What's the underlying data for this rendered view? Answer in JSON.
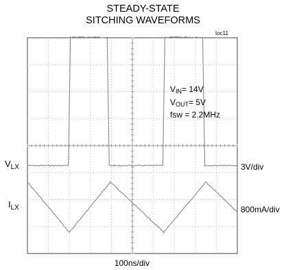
{
  "chart_data": {
    "type": "line",
    "title_line1": "STEADY-STATE",
    "title_line2": "SITCHING WAVEFORMS",
    "figure_tag": "toc11",
    "xlabel": "100ns/div",
    "grid": {
      "x_divisions": 10,
      "y_divisions": 8,
      "on": true
    },
    "annotations": {
      "vin_sym": "V",
      "vin_sub": "IN",
      "vin_rest": "= 14V",
      "vout_sym": "V",
      "vout_sub": "OUT",
      "vout_rest": "= 5V",
      "fsw": "fsw = 2.2MHz"
    },
    "series": [
      {
        "label_sym": "V",
        "label_sub": "LX",
        "scale": "3V/div",
        "x_divisions": [
          0,
          1.95,
          2.05,
          3.8,
          3.9,
          4.15,
          6.45,
          6.55,
          8.35,
          8.45,
          8.7,
          10
        ],
        "y_divisions": [
          0,
          0,
          4.76,
          4.76,
          0,
          0,
          0,
          4.76,
          4.76,
          0,
          0,
          0
        ]
      },
      {
        "label_sym": "I",
        "label_sub": "LX",
        "scale": "800mA/div",
        "x_divisions": [
          0,
          2.0,
          3.95,
          6.5,
          8.5,
          10
        ],
        "y_divisions": [
          0.84,
          -1.02,
          0.84,
          -1.02,
          0.84,
          -0.27
        ]
      }
    ]
  }
}
